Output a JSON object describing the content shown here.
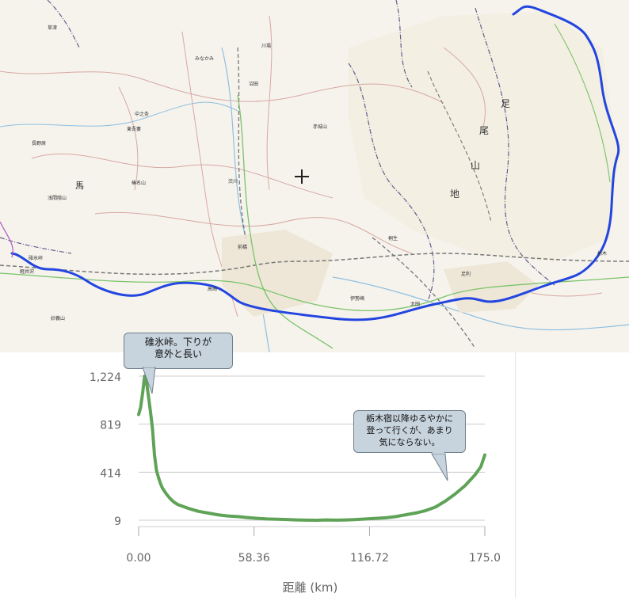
{
  "map": {
    "route_color": "#2346e0",
    "place_labels": {
      "yokokawa": "碓氷峠",
      "naganohara": "長野原",
      "nakanojo": "中之条",
      "higashiagatsuma": "東吾妻",
      "kusatsu": "草津",
      "takasaki": "高崎",
      "maebashi": "前橋",
      "shibukawa": "渋川",
      "kiryu": "桐生",
      "ota": "太田",
      "ashikaga": "足利",
      "tochigi": "栃木",
      "isesaki": "伊勢崎",
      "numata": "沼田",
      "kawaba": "川場",
      "minakami": "みなかみ",
      "haruna": "榛名山",
      "akagi": "赤城山",
      "myogi": "妙義山",
      "asama": "浅間隠山",
      "karuizawa": "軽井沢",
      "gunma": "馬",
      "ashio_1": "足",
      "ashio_2": "尾",
      "ashio_3": "山",
      "ashio_4": "地"
    }
  },
  "chart": {
    "callouts": {
      "left": "碓氷峠。下りが\n意外と長い",
      "right": "栃木宿以降ゆるやかに\n登って行くが、あまり\n気にならない。"
    },
    "line_color": "#5fa357"
  },
  "chart_data": {
    "type": "area",
    "title": "",
    "xlabel": "距離 (km)",
    "ylabel": "",
    "x_ticks": [
      "0.00",
      "58.36",
      "116.72",
      "175.0"
    ],
    "y_ticks": [
      "9",
      "414",
      "819",
      "1,224"
    ],
    "xlim": [
      0,
      175
    ],
    "ylim": [
      9,
      1224
    ],
    "series": [
      {
        "x": [
          0,
          1,
          2,
          3,
          4,
          5,
          6,
          7,
          8,
          9,
          10,
          11,
          12,
          14,
          16,
          18,
          20,
          25,
          30,
          35,
          40,
          45,
          50,
          55,
          60,
          65,
          70,
          75,
          80,
          85,
          90,
          95,
          100,
          105,
          110,
          115,
          120,
          125,
          130,
          135,
          140,
          145,
          150,
          155,
          160,
          165,
          170,
          173,
          175
        ],
        "y": [
          900,
          960,
          1080,
          1224,
          1170,
          1050,
          920,
          780,
          560,
          430,
          370,
          320,
          280,
          230,
          190,
          160,
          140,
          110,
          85,
          70,
          55,
          45,
          40,
          32,
          25,
          20,
          18,
          15,
          12,
          10,
          9,
          12,
          10,
          12,
          15,
          20,
          25,
          30,
          40,
          55,
          70,
          90,
          120,
          170,
          230,
          300,
          390,
          460,
          560
        ]
      }
    ]
  }
}
